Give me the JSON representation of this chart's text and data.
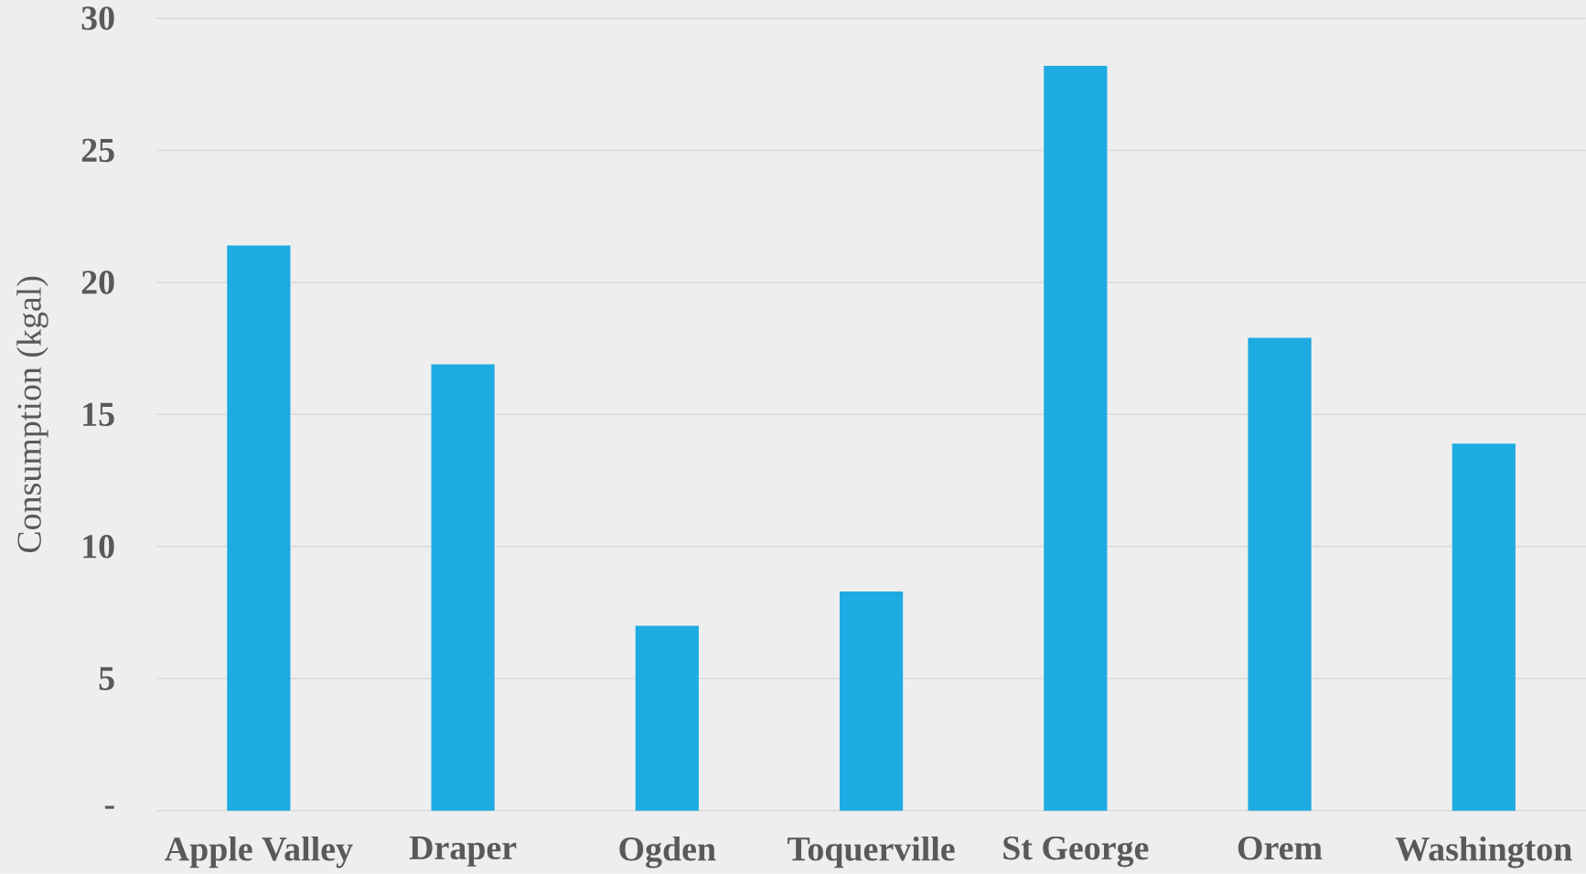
{
  "chart_data": {
    "type": "bar",
    "ylabel": "Consumption (kgal)",
    "categories": [
      "Apple Valley",
      "Draper",
      "Ogden",
      "Toquerville",
      "St George",
      "Orem",
      "Washington"
    ],
    "values": [
      21.4,
      16.9,
      7.0,
      8.3,
      28.2,
      17.9,
      13.9
    ],
    "color": "#1eabe2",
    "ylim": [
      0,
      30
    ],
    "yticks": [
      {
        "value": 0,
        "label": "-"
      },
      5,
      10,
      15,
      20,
      25,
      30
    ],
    "grid": "y"
  }
}
